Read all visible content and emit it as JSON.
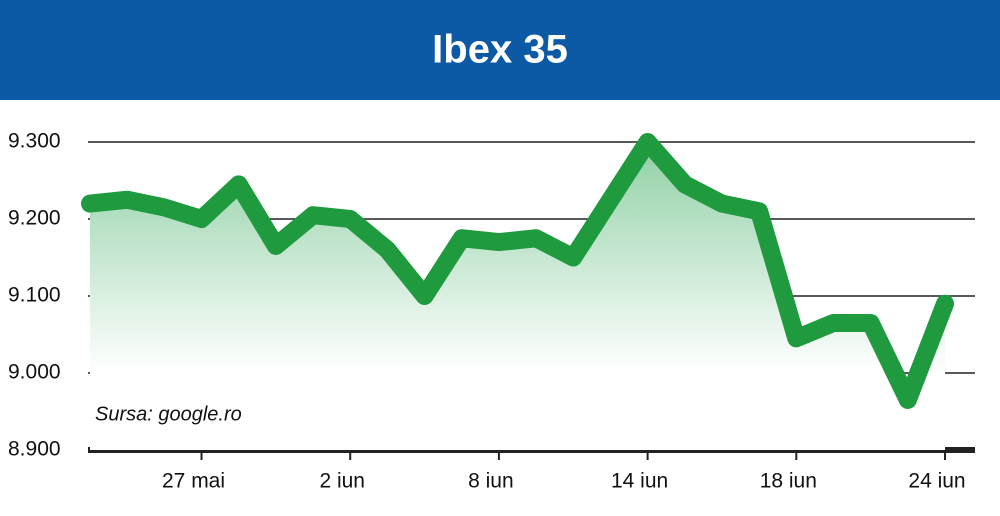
{
  "chart_data": {
    "type": "line",
    "title": "Ibex 35",
    "annotation": "Sursa: google.ro",
    "categories": [
      null,
      null,
      null,
      "27 mai",
      null,
      null,
      null,
      "2 iun",
      null,
      null,
      null,
      "8 iun",
      null,
      null,
      null,
      "14 iun",
      null,
      null,
      null,
      "18 iun",
      null,
      null,
      null,
      "24 iun"
    ],
    "series": [
      {
        "name": "Ibex 35",
        "color": "#1f9a3f",
        "values": [
          9220,
          9225,
          9215,
          9200,
          9245,
          9165,
          9205,
          9200,
          9160,
          9100,
          9175,
          9170,
          9175,
          9150,
          9225,
          9300,
          9245,
          9220,
          9210,
          9045,
          9065,
          9065,
          8965,
          9090
        ]
      }
    ],
    "ylim": [
      8900,
      9300
    ],
    "yticks": [
      {
        "value": 8900,
        "label": "8.900"
      },
      {
        "value": 9000,
        "label": "9.000"
      },
      {
        "value": 9100,
        "label": "9.100"
      },
      {
        "value": 9200,
        "label": "9.200"
      },
      {
        "value": 9300,
        "label": "9.300"
      }
    ],
    "grid": true
  }
}
